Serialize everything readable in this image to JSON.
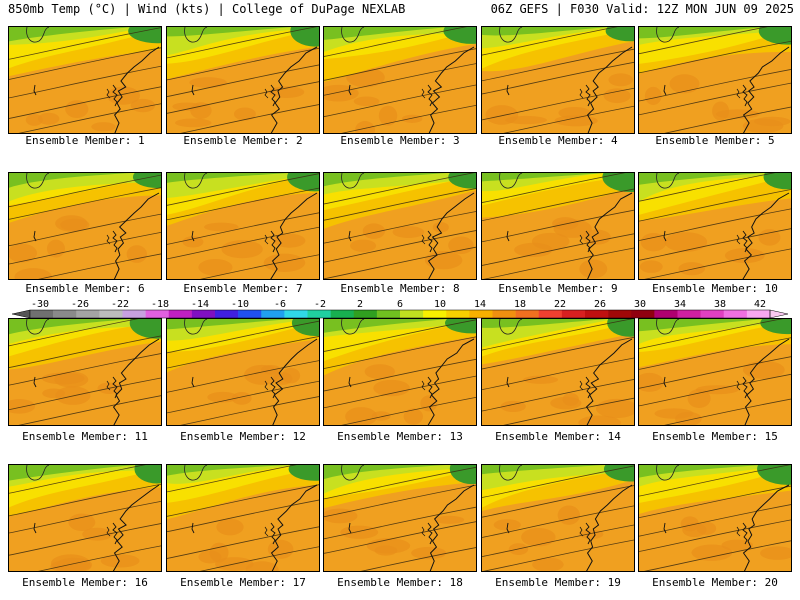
{
  "header": {
    "left": "850mb Temp (°C) | Wind (kts) | College of DuPage NEXLAB",
    "right": "06Z GEFS | F030 Valid: 12Z MON JUN 09 2025"
  },
  "panel_label_prefix": "Ensemble Member:",
  "members": [
    "Ensemble Member: 1",
    "Ensemble Member: 2",
    "Ensemble Member: 3",
    "Ensemble Member: 4",
    "Ensemble Member: 5",
    "Ensemble Member: 6",
    "Ensemble Member: 7",
    "Ensemble Member: 8",
    "Ensemble Member: 9",
    "Ensemble Member: 10",
    "Ensemble Member: 11",
    "Ensemble Member: 12",
    "Ensemble Member: 13",
    "Ensemble Member: 14",
    "Ensemble Member: 15",
    "Ensemble Member: 16",
    "Ensemble Member: 17",
    "Ensemble Member: 18",
    "Ensemble Member: 19",
    "Ensemble Member: 20"
  ],
  "colorbar": {
    "tick_labels": [
      "-30",
      "-26",
      "-22",
      "-18",
      "-14",
      "-10",
      "-6",
      "-2",
      "2",
      "6",
      "10",
      "14",
      "18",
      "22",
      "26",
      "30",
      "34",
      "38",
      "42"
    ],
    "colors": [
      "#707070",
      "#8a8a8a",
      "#a4a4a4",
      "#bcbcbc",
      "#c8a0e0",
      "#e060e0",
      "#c020c0",
      "#8010c0",
      "#4020e0",
      "#2050f0",
      "#20a0f0",
      "#30d8e8",
      "#20d0a0",
      "#18b050",
      "#30a020",
      "#70c020",
      "#c0e020",
      "#f8f000",
      "#f8d000",
      "#f8b000",
      "#f09010",
      "#f07020",
      "#f04030",
      "#d82020",
      "#c01010",
      "#a00808",
      "#900010",
      "#b00070",
      "#d020a0",
      "#e040c0",
      "#f070e0",
      "#f8a8f0"
    ]
  },
  "map_colors": {
    "orange": "#f0a020",
    "orange_dark": "#e88e1a",
    "yellow_orange": "#f6c200",
    "yellow": "#f8e000",
    "yellow_green": "#c8e020",
    "green": "#78c020",
    "green_dark": "#3a9a2a"
  }
}
